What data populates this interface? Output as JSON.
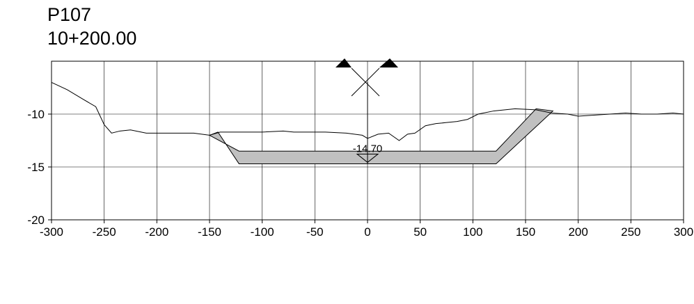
{
  "title": {
    "line1": "P107",
    "line2": "10+200.00"
  },
  "chart_data": {
    "type": "line",
    "title": "P107 10+200.00",
    "xlim": [
      -300,
      300
    ],
    "ylim": [
      -20,
      -5
    ],
    "x_ticks": [
      -300,
      -250,
      -200,
      -150,
      -100,
      -50,
      0,
      50,
      100,
      150,
      200,
      250,
      300
    ],
    "y_ticks": [
      -10,
      -15,
      -20
    ],
    "grid": true,
    "annotation": {
      "label": "-14.70",
      "x": 0,
      "y": -14.7
    },
    "series": [
      {
        "x": [
          -300,
          -285,
          -270,
          -258,
          -250,
          -243,
          -235,
          -225,
          -210,
          -195,
          -180,
          -165,
          -150,
          -140,
          -130,
          -120,
          -100,
          -80,
          -70,
          -60,
          -40,
          -20,
          -5,
          0,
          10,
          20,
          30,
          38,
          45,
          55,
          65,
          75,
          85,
          95,
          105,
          120,
          140,
          160,
          175,
          190,
          200,
          215,
          230,
          245,
          260,
          275,
          290,
          300
        ],
        "y": [
          -7.0,
          -7.7,
          -8.6,
          -9.3,
          -11.0,
          -11.8,
          -11.6,
          -11.5,
          -11.8,
          -11.8,
          -11.8,
          -11.8,
          -12.0,
          -11.7,
          -11.7,
          -11.7,
          -11.7,
          -11.6,
          -11.7,
          -11.7,
          -11.7,
          -11.8,
          -12.0,
          -12.3,
          -11.9,
          -11.8,
          -12.5,
          -11.9,
          -11.8,
          -11.1,
          -10.9,
          -10.8,
          -10.7,
          -10.5,
          -10.0,
          -9.7,
          -9.5,
          -9.6,
          -9.9,
          -10.0,
          -10.2,
          -10.1,
          -10.0,
          -9.9,
          -10.0,
          -10.0,
          -9.9,
          -10.0
        ]
      },
      {
        "x": [
          -150,
          -122,
          122,
          160,
          176,
          122,
          0,
          -122,
          -142,
          -150
        ],
        "y": [
          -12.0,
          -13.5,
          -13.5,
          -9.5,
          -9.7,
          -14.7,
          -14.7,
          -14.7,
          -11.7,
          -12.0
        ]
      }
    ]
  }
}
